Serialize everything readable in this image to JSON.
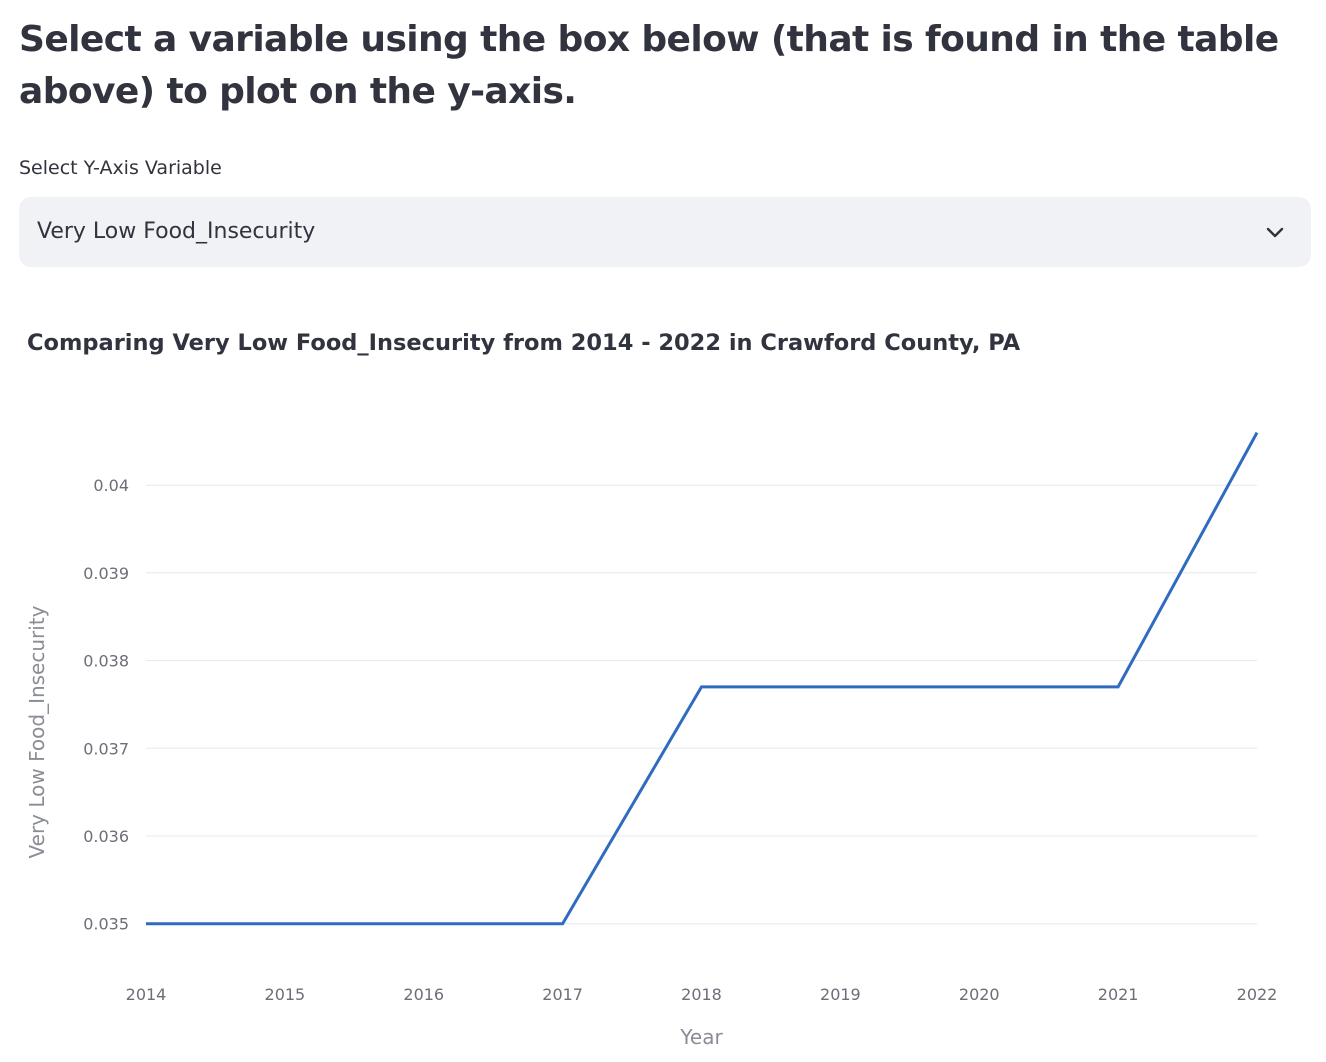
{
  "heading": "Select a variable using the box below (that is found in the table above) to plot on the y-axis.",
  "selector": {
    "label": "Select Y-Axis Variable",
    "selected_value": "Very Low Food_Insecurity",
    "chevron_icon": "chevron-down-icon"
  },
  "colors": {
    "line": "#2f6bbf",
    "grid": "#e6e8ec",
    "tick_text": "#6c6e78",
    "axis_title": "#8a8c96",
    "title_text": "#31333f",
    "select_bg": "#f0f2f6"
  },
  "chart_data": {
    "type": "line",
    "title": "Comparing Very Low Food_Insecurity from 2014 - 2022 in Crawford County, PA",
    "xlabel": "Year",
    "ylabel": "Very Low Food_Insecurity",
    "x": [
      2014,
      2015,
      2016,
      2017,
      2018,
      2019,
      2020,
      2021,
      2022
    ],
    "series": [
      {
        "values": [
          0.035,
          0.035,
          0.035,
          0.035,
          0.0377,
          0.0377,
          0.0377,
          0.0377,
          0.0406
        ]
      }
    ],
    "xlim": [
      2014,
      2022
    ],
    "ylim": [
      0.0347,
      0.0412
    ],
    "yticks": [
      0.035,
      0.036,
      0.037,
      0.038,
      0.039,
      0.04
    ],
    "ytick_labels": [
      "0.035",
      "0.036",
      "0.037",
      "0.038",
      "0.039",
      "0.04"
    ],
    "xtick_labels": [
      "2014",
      "2015",
      "2016",
      "2017",
      "2018",
      "2019",
      "2020",
      "2021",
      "2022"
    ],
    "grid": "horizontal",
    "legend": "none"
  }
}
